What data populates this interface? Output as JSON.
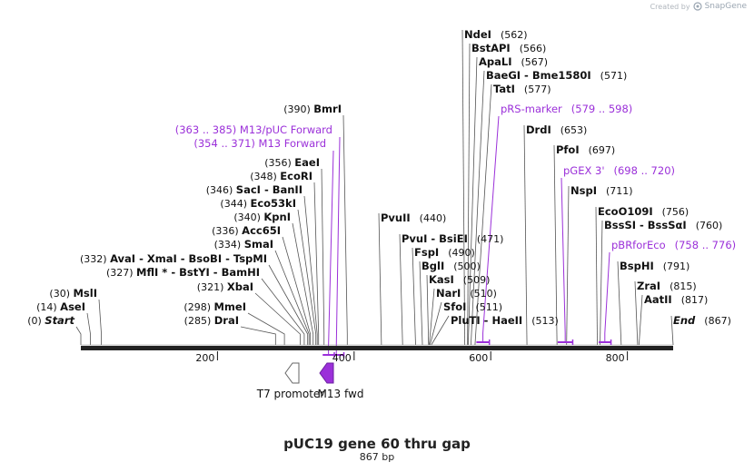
{
  "watermark": {
    "created_by": "Created by",
    "brand": "SnapGene"
  },
  "title": "pUC19 gene 60 thru gap",
  "subtitle": "867 bp",
  "map": {
    "length": 867,
    "scale_ticks": [
      200,
      400,
      600,
      800
    ],
    "sites": [
      {
        "name": "Start",
        "pos": "(0)",
        "bp": 0,
        "italic": true
      },
      {
        "name": "AseI",
        "pos": "(14)",
        "bp": 14
      },
      {
        "name": "MslI",
        "pos": "(30)",
        "bp": 30
      },
      {
        "name": "DraI",
        "pos": "(285)",
        "bp": 285
      },
      {
        "name": "MmeI",
        "pos": "(298)",
        "bp": 298
      },
      {
        "name": "XbaI",
        "pos": "(321)",
        "bp": 321
      },
      {
        "name": "MflI * - BstYI - BamHI",
        "pos": "(327)",
        "bp": 327
      },
      {
        "name": "AvaI - XmaI - BsoBI - TspMI",
        "pos": "(332)",
        "bp": 332
      },
      {
        "name": "SmaI",
        "pos": "(334)",
        "bp": 334
      },
      {
        "name": "Acc65I",
        "pos": "(336)",
        "bp": 336
      },
      {
        "name": "KpnI",
        "pos": "(340)",
        "bp": 340
      },
      {
        "name": "Eco53kI",
        "pos": "(344)",
        "bp": 344
      },
      {
        "name": "SacI - BanII",
        "pos": "(346)",
        "bp": 346
      },
      {
        "name": "EcoRI",
        "pos": "(348)",
        "bp": 348
      },
      {
        "name": "EaeI",
        "pos": "(356)",
        "bp": 356
      },
      {
        "name": "BmrI",
        "pos": "(390)",
        "bp": 390
      },
      {
        "name": "PvuII",
        "pos": "(440)",
        "bp": 440
      },
      {
        "name": "PvuI - BsiEI",
        "pos": "(471)",
        "bp": 471
      },
      {
        "name": "FspI",
        "pos": "(490)",
        "bp": 490
      },
      {
        "name": "BglI",
        "pos": "(500)",
        "bp": 500
      },
      {
        "name": "KasI",
        "pos": "(509)",
        "bp": 509
      },
      {
        "name": "NarI",
        "pos": "(510)",
        "bp": 510
      },
      {
        "name": "SfoI",
        "pos": "(511)",
        "bp": 511
      },
      {
        "name": "PluTI - HaeII",
        "pos": "(513)",
        "bp": 513
      },
      {
        "name": "NdeI",
        "pos": "(562)",
        "bp": 562
      },
      {
        "name": "BstAPI",
        "pos": "(566)",
        "bp": 566
      },
      {
        "name": "ApaLI",
        "pos": "(567)",
        "bp": 567
      },
      {
        "name": "BaeGI - Bme1580I",
        "pos": "(571)",
        "bp": 571
      },
      {
        "name": "TatI",
        "pos": "(577)",
        "bp": 577
      },
      {
        "name": "DrdI",
        "pos": "(653)",
        "bp": 653
      },
      {
        "name": "PfoI",
        "pos": "(697)",
        "bp": 697
      },
      {
        "name": "NspI",
        "pos": "(711)",
        "bp": 711
      },
      {
        "name": "EcoO109I",
        "pos": "(756)",
        "bp": 756
      },
      {
        "name": "BssSI - BssSαI",
        "pos": "(760)",
        "bp": 760
      },
      {
        "name": "BspHI",
        "pos": "(791)",
        "bp": 791
      },
      {
        "name": "ZraI",
        "pos": "(815)",
        "bp": 815
      },
      {
        "name": "AatII",
        "pos": "(817)",
        "bp": 817
      },
      {
        "name": "End",
        "pos": "(867)",
        "bp": 867,
        "italic": true
      }
    ],
    "primers": [
      {
        "name": "M13/pUC Forward",
        "pos": "(363 .. 385)",
        "start": 363,
        "end": 385
      },
      {
        "name": "M13 Forward",
        "pos": "(354 .. 371)",
        "start": 354,
        "end": 371
      },
      {
        "name": "pRS-marker",
        "pos": "(579 .. 598)",
        "start": 579,
        "end": 598
      },
      {
        "name": "pGEX 3'",
        "pos": "(698 .. 720)",
        "start": 698,
        "end": 720
      },
      {
        "name": "pBRforEco",
        "pos": "(758 .. 776)",
        "start": 758,
        "end": 776
      }
    ],
    "features": [
      {
        "name": "T7 promoter",
        "direction": "reverse",
        "color": "#ffffff"
      },
      {
        "name": "M13 fwd",
        "direction": "reverse",
        "color": "#9b30d9"
      }
    ]
  },
  "colors": {
    "primer": "#9b30d9",
    "backbone": "#222222",
    "label": "#111111"
  }
}
